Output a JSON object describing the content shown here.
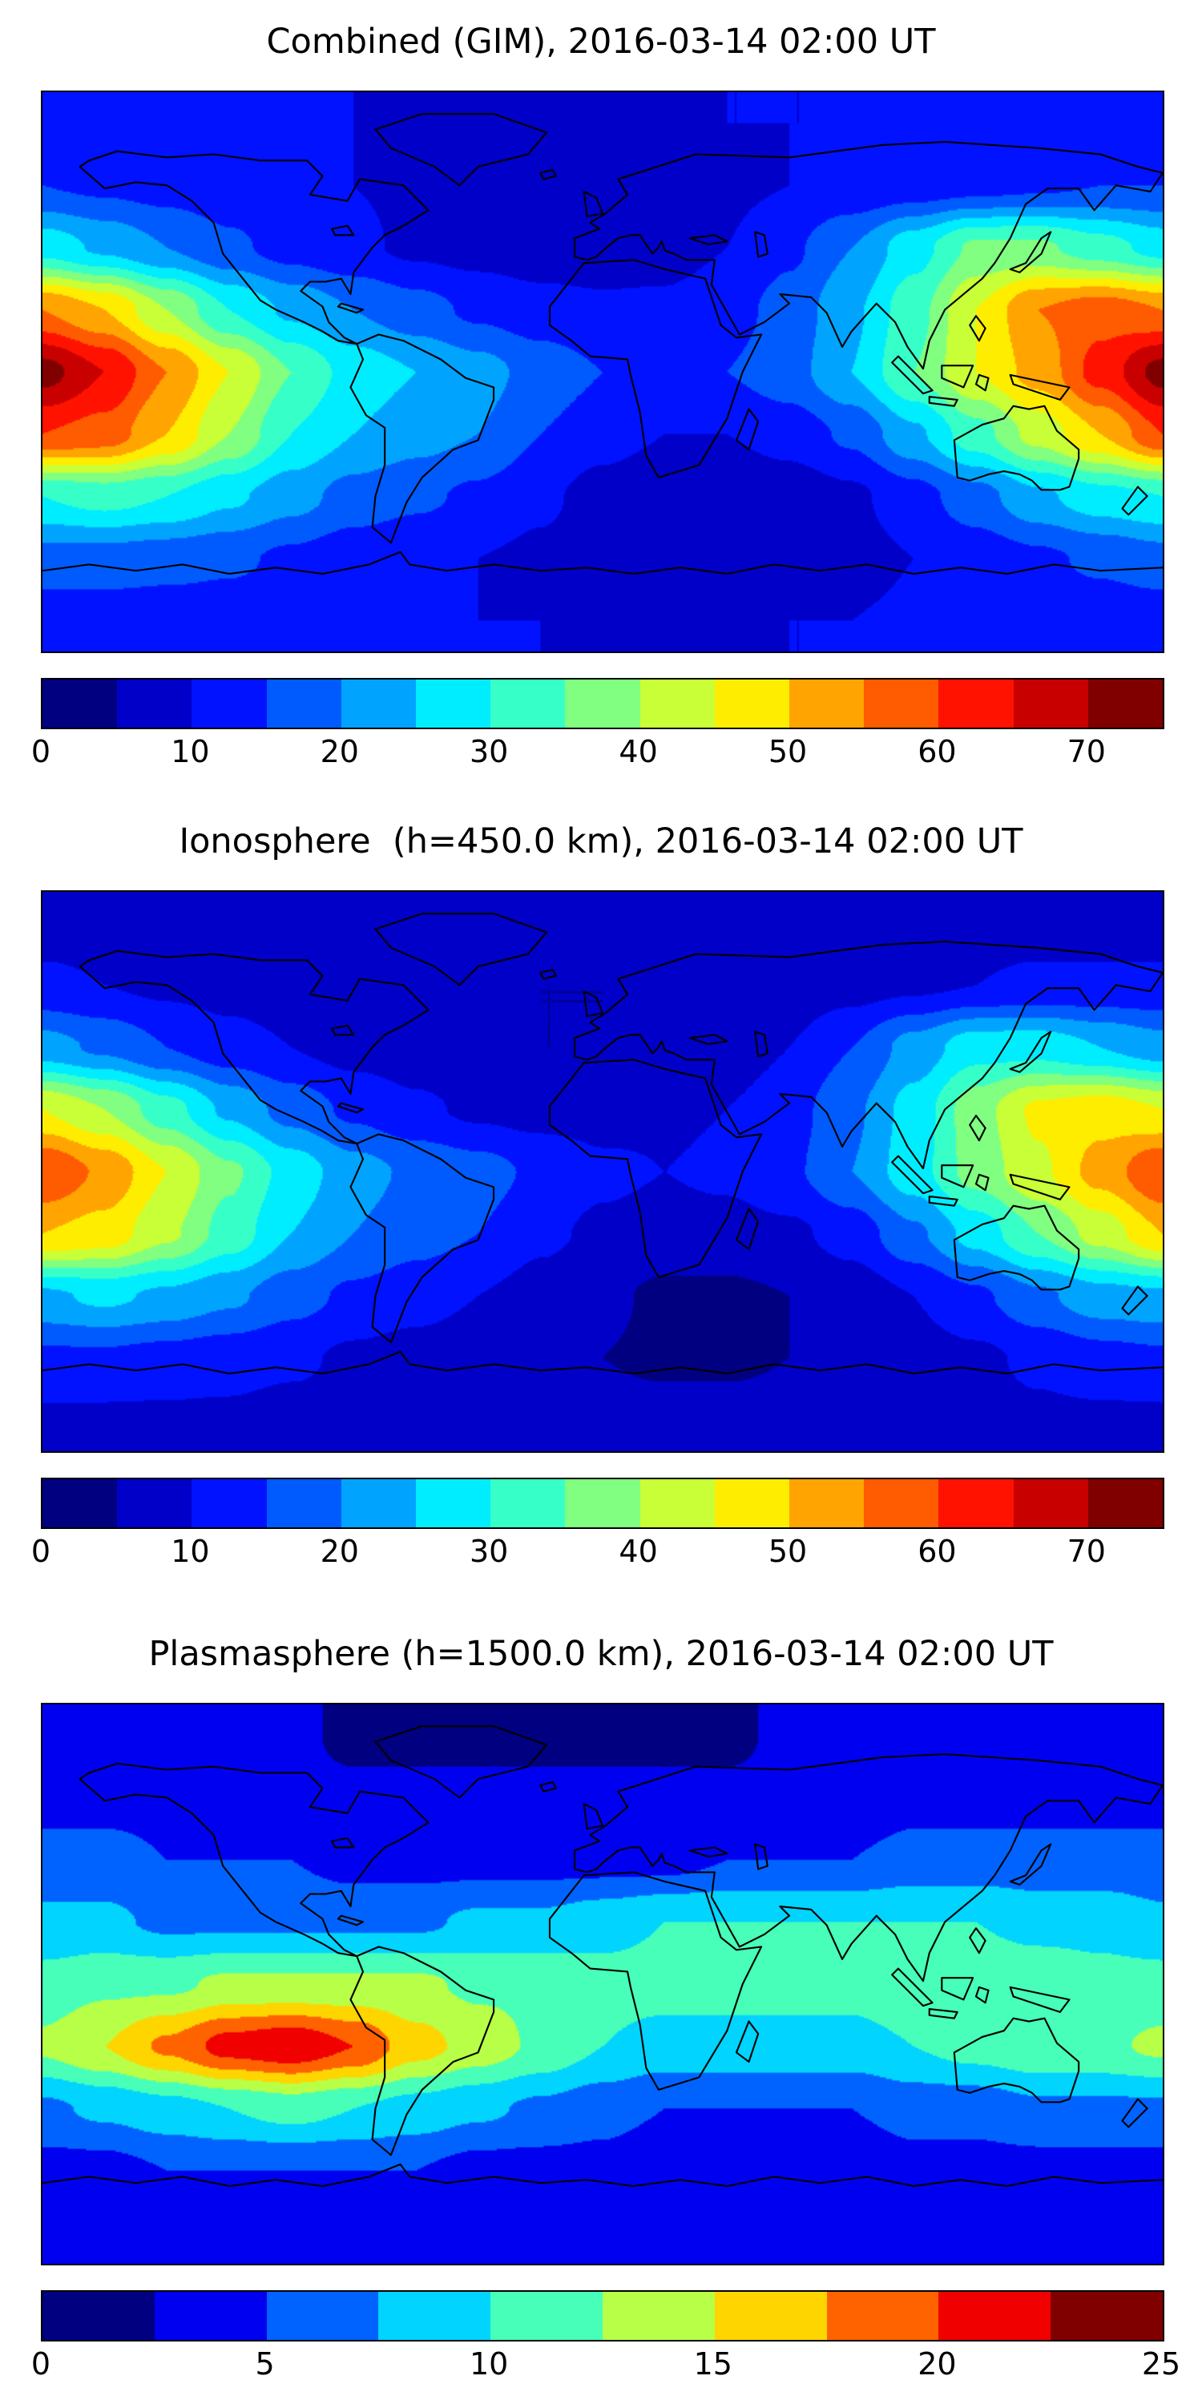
{
  "figure": {
    "background": "#ffffff",
    "colormap_name": "jet",
    "colormap_endpoints": {
      "low": "#000080",
      "high": "#800000"
    }
  },
  "chart_data": [
    {
      "type": "heatmap",
      "title": "Combined (GIM), 2016-03-14 02:00 UT",
      "x_range": [
        -180,
        180
      ],
      "y_range": [
        -90,
        90
      ],
      "vmin": 0,
      "vmax": 75,
      "level_step": 5,
      "colorbar_ticks": [
        0,
        10,
        20,
        30,
        40,
        50,
        60,
        70
      ],
      "lon": [
        -180,
        -160,
        -140,
        -120,
        -100,
        -80,
        -60,
        -40,
        -20,
        0,
        20,
        40,
        60,
        80,
        100,
        120,
        140,
        160
      ],
      "lat": [
        80,
        60,
        40,
        20,
        0,
        -20,
        -40,
        -60,
        -80
      ],
      "values": [
        [
          12,
          12,
          11,
          10,
          10,
          10,
          9,
          9,
          9,
          9,
          9,
          10,
          10,
          10,
          11,
          11,
          12,
          12
        ],
        [
          15,
          14,
          13,
          12,
          11,
          10,
          9,
          8,
          8,
          8,
          8,
          9,
          10,
          11,
          12,
          13,
          14,
          15
        ],
        [
          28,
          24,
          20,
          16,
          13,
          11,
          9,
          8,
          7,
          7,
          8,
          10,
          14,
          20,
          28,
          36,
          36,
          32
        ],
        [
          55,
          50,
          40,
          30,
          24,
          20,
          17,
          14,
          12,
          11,
          11,
          13,
          17,
          24,
          33,
          45,
          55,
          58
        ],
        [
          72,
          65,
          55,
          45,
          35,
          28,
          25,
          22,
          18,
          15,
          14,
          15,
          18,
          25,
          35,
          45,
          52,
          62
        ],
        [
          60,
          58,
          50,
          40,
          30,
          25,
          22,
          20,
          15,
          12,
          10,
          10,
          12,
          16,
          24,
          33,
          42,
          50
        ],
        [
          30,
          32,
          30,
          26,
          22,
          18,
          16,
          14,
          11,
          8,
          6,
          6,
          7,
          9,
          13,
          18,
          24,
          28
        ],
        [
          18,
          18,
          17,
          16,
          14,
          12,
          11,
          10,
          9,
          7,
          6,
          6,
          7,
          8,
          10,
          12,
          14,
          16
        ],
        [
          12,
          12,
          12,
          12,
          11,
          11,
          10,
          10,
          10,
          9,
          9,
          9,
          10,
          10,
          11,
          11,
          12,
          12
        ]
      ]
    },
    {
      "type": "heatmap",
      "title": "Ionosphere  (h=450.0 km), 2016-03-14 02:00 UT",
      "x_range": [
        -180,
        180
      ],
      "y_range": [
        -90,
        90
      ],
      "vmin": 0,
      "vmax": 75,
      "level_step": 5,
      "colorbar_ticks": [
        0,
        10,
        20,
        30,
        40,
        50,
        60,
        70
      ],
      "lon": [
        -180,
        -160,
        -140,
        -120,
        -100,
        -80,
        -60,
        -40,
        -20,
        0,
        20,
        40,
        60,
        80,
        100,
        120,
        140,
        160
      ],
      "lat": [
        80,
        60,
        40,
        20,
        0,
        -20,
        -40,
        -60,
        -80
      ],
      "values": [
        [
          8,
          8,
          7,
          7,
          7,
          6,
          6,
          6,
          6,
          6,
          6,
          6,
          7,
          7,
          7,
          8,
          8,
          8
        ],
        [
          11,
          10,
          9,
          8,
          7,
          7,
          6,
          5,
          5,
          5,
          5,
          6,
          7,
          8,
          9,
          10,
          11,
          11
        ],
        [
          22,
          19,
          15,
          12,
          10,
          8,
          7,
          6,
          5,
          5,
          6,
          7,
          10,
          15,
          22,
          28,
          28,
          25
        ],
        [
          45,
          40,
          32,
          24,
          18,
          14,
          11,
          9,
          8,
          8,
          9,
          10,
          13,
          19,
          27,
          38,
          46,
          48
        ],
        [
          60,
          54,
          45,
          36,
          28,
          22,
          19,
          17,
          14,
          11,
          10,
          11,
          14,
          20,
          28,
          37,
          44,
          52
        ],
        [
          50,
          48,
          41,
          33,
          25,
          20,
          17,
          15,
          11,
          9,
          8,
          8,
          9,
          12,
          19,
          27,
          35,
          42
        ],
        [
          24,
          26,
          24,
          21,
          17,
          14,
          12,
          10,
          8,
          6,
          4,
          4,
          5,
          7,
          10,
          14,
          19,
          23
        ],
        [
          14,
          14,
          13,
          12,
          11,
          9,
          8,
          7,
          6,
          5,
          4,
          4,
          5,
          6,
          8,
          9,
          11,
          13
        ],
        [
          9,
          9,
          9,
          9,
          8,
          8,
          8,
          7,
          7,
          7,
          7,
          7,
          7,
          8,
          8,
          8,
          9,
          9
        ]
      ]
    },
    {
      "type": "heatmap",
      "title": "Plasmasphere (h=1500.0 km), 2016-03-14 02:00 UT",
      "x_range": [
        -180,
        180
      ],
      "y_range": [
        -90,
        90
      ],
      "vmin": 0,
      "vmax": 25,
      "level_step": 2.5,
      "colorbar_ticks": [
        0,
        5,
        10,
        15,
        20,
        25
      ],
      "lon": [
        -180,
        -160,
        -140,
        -120,
        -100,
        -80,
        -60,
        -40,
        -20,
        0,
        20,
        40,
        60,
        80,
        100,
        120,
        140,
        160
      ],
      "lat": [
        80,
        60,
        40,
        20,
        0,
        -20,
        -40,
        -60,
        -80
      ],
      "values": [
        [
          3,
          3,
          3,
          3,
          3,
          2,
          2,
          2,
          2,
          2,
          2,
          2,
          3,
          3,
          3,
          3,
          3,
          3
        ],
        [
          4,
          4,
          4,
          3,
          3,
          3,
          3,
          3,
          3,
          3,
          3,
          3,
          3,
          3,
          4,
          4,
          4,
          4
        ],
        [
          6,
          6,
          5,
          5,
          5,
          4,
          4,
          4,
          4,
          4,
          4,
          5,
          5,
          5,
          6,
          6,
          6,
          6
        ],
        [
          8,
          8,
          7,
          7,
          7,
          7,
          7,
          8,
          8,
          9,
          10,
          10,
          10,
          10,
          10,
          10,
          9,
          9
        ],
        [
          11,
          12,
          12,
          13,
          13,
          13,
          13,
          12,
          12,
          11,
          11,
          11,
          11,
          11,
          12,
          12,
          12,
          11
        ],
        [
          13,
          15,
          18,
          21,
          22,
          20,
          16,
          14,
          12,
          10,
          9,
          9,
          9,
          9,
          10,
          11,
          12,
          12
        ],
        [
          7,
          8,
          9,
          10,
          11,
          10,
          9,
          8,
          7,
          6,
          5,
          5,
          5,
          5,
          6,
          6,
          7,
          7
        ],
        [
          4,
          4,
          5,
          5,
          5,
          5,
          5,
          4,
          4,
          4,
          3,
          3,
          3,
          3,
          4,
          4,
          4,
          4
        ],
        [
          3,
          3,
          3,
          3,
          3,
          3,
          3,
          3,
          3,
          3,
          3,
          3,
          3,
          3,
          3,
          3,
          3,
          3
        ]
      ]
    }
  ],
  "coastlines": {
    "paths": [
      "M 12,24 L 20,31 30,29 40,30 48,35 55,42 58,52 66,62 70,67 75,70 84,74 90,77 95,80 101,81 97,79 92,74 90,69 83,64 86,61 91,61 96,60 99,65 100,58 106,50 110,46 116,43 124,38 116,30 102,28 98,35 86,33 90,27 85,22 70,22 55,20 40,21 24,19 15,22 Z",
      "M 107,12 L 122,7 145,7 162,13 156,20 140,24 134,30 126,24 112,18 Z",
      "M 101,81 L 103,86 99,95 104,104 110,108 110,120 107,130 106,140 112,145 117,132 122,124 132,115 140,112 145,99 145,95 136,92 128,86 116,80 108,78 Z",
      "M 174,55 L 163,69 163,75 170,80 176,85 188,86 189,91 192,103 194,117 198,124 211,120 220,105 225,90 231,78 223,79 218,75 213,60 200,57 190,54 Z",
      "M 185,28 L 210,20 240,21 270,17 290,16 320,18 340,20 352,24 360,26 356,32 345,30 338,38 333,31 323,31 316,36 311,47 306,55 302,60 290,70 285,80 283,89 278,82 274,74 268,68 260,77 257,82 252,71 247,66 237,65 240,68 232,74 224,78 215,62 216,54 207,54 203,52 200,51 199,48 198,50 196,52 192,46 189,46 185,47 180,51 178,53 175,54 171,53 171,47 179,44 176,42 181,39 188,33 Z",
      "M 175,40 L 180,39 178,34 174,32 Z",
      "M 160,26 L 164,25 165,27 161,28 Z",
      "M 311,57 L 316,55 321,47 324,45 321,52 314,58 Z",
      "M 227,102 L 230,106 227,115 223,112 Z",
      "M 275,85 L 286,96 283,97 273,87 Z",
      "M 289,88 L 299,88 296,95 289,92 Z",
      "M 285,98 L 294,99 293,101 285,100 Z",
      "M 311,91 L 330,95 327,99 312,94 Z",
      "M 300,72 L 303,76 301,80 298,75 Z",
      "M 301,91 L 304,92 303,96 300,94 Z",
      "M 293,112 L 294,124 298,125 304,123 309,122 314,123 318,125 321,128 327,128 330,127 333,118 333,115 326,109 322,101 317,102 312,101 309,105 302,107 Z",
      "M 352,127 L 355,130 349,136 347,134 Z",
      "M 96,68 L 103,70 101,71 95,69 Z",
      "M 208,47 L 216,46 220,48 214,49 Z",
      "M 229,45 L 232,46 233,52 230,53 Z",
      "M 93,44 L 98,43 100,46 94,46 Z",
      "M 0,154 L 15,152 30,154 45,152 60,155 75,153 90,155 105,152 115,148 118,152 130,154 145,152 160,154 175,153 190,155 205,153 220,155 235,152 250,154 265,152 280,155 295,153 310,155 325,152 340,154 360,153"
    ]
  }
}
